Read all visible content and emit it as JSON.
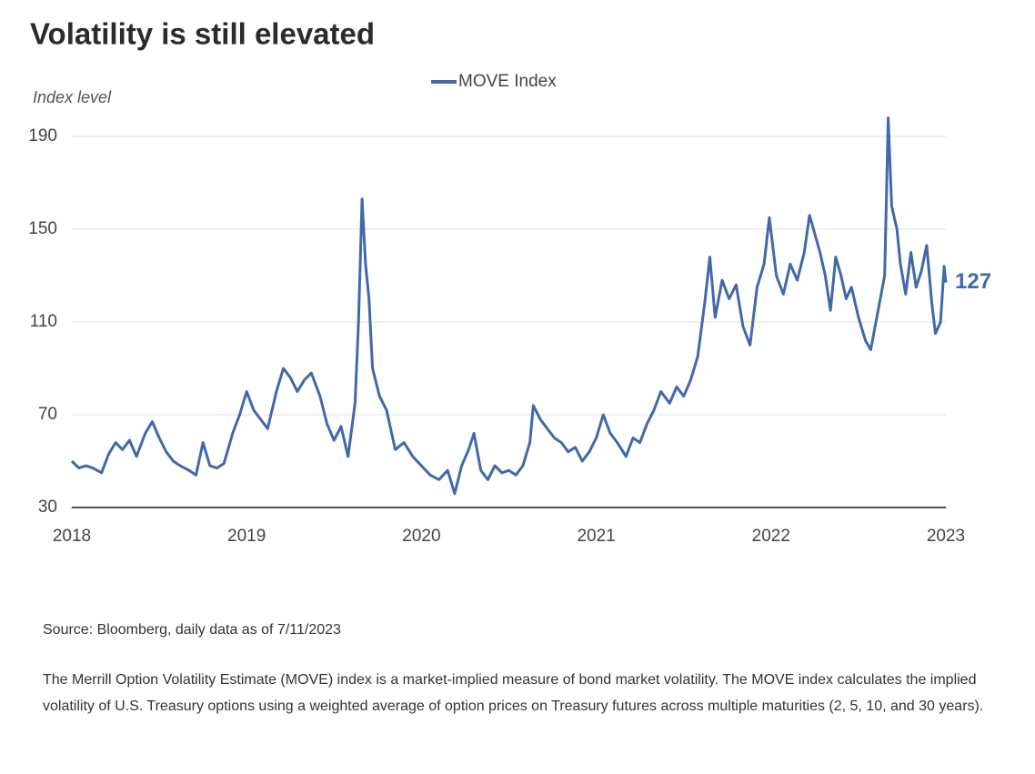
{
  "chart_data": {
    "type": "line",
    "title": "Volatility is still elevated",
    "y_label": "Index level",
    "xlim": [
      2018,
      2023
    ],
    "xticks": [
      2018,
      2019,
      2020,
      2021,
      2022,
      2023
    ],
    "ylim": [
      30,
      190
    ],
    "yticks": [
      30,
      70,
      110,
      150,
      190
    ],
    "grid": true,
    "legend": "top",
    "x": [
      2018.0,
      2018.04,
      2018.08,
      2018.12,
      2018.17,
      2018.21,
      2018.25,
      2018.29,
      2018.33,
      2018.37,
      2018.42,
      2018.46,
      2018.5,
      2018.54,
      2018.58,
      2018.62,
      2018.67,
      2018.71,
      2018.75,
      2018.79,
      2018.83,
      2018.87,
      2018.92,
      2018.96,
      2019.0,
      2019.04,
      2019.08,
      2019.12,
      2019.17,
      2019.21,
      2019.25,
      2019.29,
      2019.33,
      2019.37,
      2019.42,
      2019.46,
      2019.5,
      2019.54,
      2019.58,
      2019.62,
      2019.64,
      2019.66,
      2019.68,
      2019.7,
      2019.72,
      2019.76,
      2019.8,
      2019.85,
      2019.9,
      2019.95,
      2020.0,
      2020.05,
      2020.1,
      2020.15,
      2020.19,
      2020.23,
      2020.27,
      2020.3,
      2020.34,
      2020.38,
      2020.42,
      2020.46,
      2020.5,
      2020.54,
      2020.58,
      2020.62,
      2020.64,
      2020.68,
      2020.72,
      2020.76,
      2020.8,
      2020.84,
      2020.88,
      2020.92,
      2020.96,
      2021.0,
      2021.04,
      2021.08,
      2021.12,
      2021.17,
      2021.21,
      2021.25,
      2021.29,
      2021.33,
      2021.37,
      2021.42,
      2021.46,
      2021.5,
      2021.54,
      2021.58,
      2021.62,
      2021.65,
      2021.68,
      2021.72,
      2021.76,
      2021.8,
      2021.84,
      2021.88,
      2021.92,
      2021.96,
      2021.99,
      2022.03,
      2022.07,
      2022.11,
      2022.15,
      2022.19,
      2022.22,
      2022.25,
      2022.28,
      2022.31,
      2022.34,
      2022.37,
      2022.4,
      2022.43,
      2022.46,
      2022.5,
      2022.54,
      2022.57,
      2022.6,
      2022.63,
      2022.65,
      2022.67,
      2022.69,
      2022.72,
      2022.74,
      2022.77,
      2022.8,
      2022.83,
      2022.86,
      2022.89,
      2022.92,
      2022.94,
      2022.97,
      2022.99,
      2023.0
    ],
    "series": [
      {
        "name": "MOVE Index",
        "color": "#4169aa",
        "values": [
          50,
          47,
          48,
          47,
          45,
          53,
          58,
          55,
          59,
          52,
          62,
          67,
          60,
          54,
          50,
          48,
          46,
          44,
          58,
          48,
          47,
          49,
          62,
          70,
          80,
          72,
          68,
          64,
          80,
          90,
          86,
          80,
          85,
          88,
          78,
          66,
          59,
          65,
          52,
          75,
          110,
          163,
          135,
          120,
          90,
          78,
          72,
          55,
          58,
          52,
          48,
          44,
          42,
          46,
          36,
          48,
          55,
          62,
          46,
          42,
          48,
          45,
          46,
          44,
          48,
          58,
          74,
          68,
          64,
          60,
          58,
          54,
          56,
          50,
          54,
          60,
          70,
          62,
          58,
          52,
          60,
          58,
          66,
          72,
          80,
          75,
          82,
          78,
          85,
          95,
          118,
          138,
          112,
          128,
          120,
          126,
          108,
          100,
          125,
          135,
          155,
          130,
          122,
          135,
          128,
          140,
          156,
          148,
          140,
          130,
          115,
          138,
          130,
          120,
          125,
          112,
          102,
          98,
          110,
          122,
          130,
          198,
          160,
          150,
          135,
          122,
          140,
          125,
          132,
          143,
          118,
          105,
          110,
          134,
          127
        ]
      }
    ],
    "source": "Source: Bloomberg, daily data as of 7/11/2023",
    "description": "The Merrill Option Volatility Estimate (MOVE) index is a market-implied measure of bond market volatility. The MOVE index calculates the implied volatility of U.S. Treasury options using a weighted average of option prices on Treasury futures across multiple maturities (2, 5, 10, and 30 years)."
  }
}
